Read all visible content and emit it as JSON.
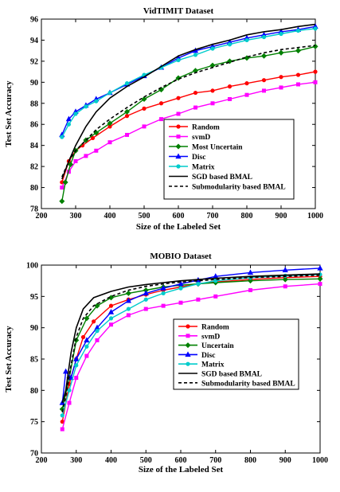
{
  "chart_data": [
    {
      "type": "line",
      "title": "VidTIMIT Dataset",
      "xlabel": "Size of the Labeled Set",
      "ylabel": "Test Set Accuracy",
      "xlim": [
        200,
        1000
      ],
      "ylim": [
        78,
        96
      ],
      "xticks": [
        200,
        300,
        400,
        500,
        600,
        700,
        800,
        900,
        1000
      ],
      "yticks": [
        78,
        80,
        82,
        84,
        86,
        88,
        90,
        92,
        94,
        96
      ],
      "grid": false,
      "legend_position": "bottom-right",
      "series": [
        {
          "name": "Random",
          "color": "#ff0000",
          "marker": "circle",
          "dash": "",
          "x": [
            260,
            280,
            300,
            320,
            350,
            400,
            450,
            500,
            550,
            600,
            650,
            700,
            750,
            800,
            850,
            900,
            950,
            1000
          ],
          "y": [
            80.5,
            82.5,
            83.5,
            84.0,
            84.7,
            85.8,
            86.8,
            87.5,
            88.0,
            88.5,
            89.0,
            89.2,
            89.6,
            89.9,
            90.2,
            90.5,
            90.7,
            91.0
          ]
        },
        {
          "name": "svmD",
          "color": "#ff00ff",
          "marker": "square",
          "dash": "",
          "x": [
            260,
            280,
            300,
            330,
            360,
            400,
            450,
            500,
            550,
            600,
            650,
            700,
            750,
            800,
            850,
            900,
            950,
            1000
          ],
          "y": [
            80.0,
            81.5,
            82.5,
            83.0,
            83.5,
            84.3,
            85.0,
            85.8,
            86.5,
            87.0,
            87.6,
            88.0,
            88.4,
            88.8,
            89.2,
            89.5,
            89.8,
            90.0
          ]
        },
        {
          "name": "Most Uncertain",
          "color": "#008000",
          "marker": "diamond",
          "dash": "",
          "x": [
            260,
            270,
            285,
            300,
            330,
            360,
            400,
            450,
            500,
            550,
            600,
            650,
            700,
            750,
            800,
            850,
            900,
            950,
            1000
          ],
          "y": [
            78.7,
            80.5,
            82.2,
            83.5,
            84.5,
            85.2,
            86.1,
            87.2,
            88.4,
            89.3,
            90.4,
            91.1,
            91.6,
            92.0,
            92.3,
            92.5,
            92.8,
            93.0,
            93.4
          ]
        },
        {
          "name": "Disc",
          "color": "#0000ff",
          "marker": "triangle",
          "dash": "",
          "x": [
            260,
            280,
            300,
            330,
            360,
            400,
            450,
            500,
            550,
            600,
            650,
            700,
            750,
            800,
            850,
            900,
            950,
            1000
          ],
          "y": [
            85.0,
            86.5,
            87.2,
            87.8,
            88.4,
            89.0,
            89.8,
            90.6,
            91.4,
            92.3,
            93.0,
            93.4,
            93.8,
            94.2,
            94.5,
            94.8,
            95.0,
            95.3
          ]
        },
        {
          "name": "Matrix",
          "color": "#00cccc",
          "marker": "circle",
          "dash": "",
          "x": [
            260,
            280,
            300,
            330,
            360,
            400,
            450,
            500,
            550,
            600,
            650,
            700,
            750,
            800,
            850,
            900,
            950,
            1000
          ],
          "y": [
            84.8,
            86.0,
            87.0,
            87.7,
            88.2,
            89.0,
            89.9,
            90.7,
            91.4,
            92.1,
            92.6,
            93.2,
            93.6,
            94.0,
            94.3,
            94.6,
            94.9,
            95.1
          ]
        },
        {
          "name": "SGD based BMAL",
          "color": "#000000",
          "marker": "none",
          "dash": "",
          "x": [
            260,
            280,
            300,
            330,
            360,
            400,
            450,
            500,
            550,
            600,
            650,
            700,
            750,
            800,
            850,
            900,
            950,
            1000
          ],
          "y": [
            80.8,
            82.5,
            84.0,
            85.8,
            87.2,
            88.5,
            89.6,
            90.5,
            91.5,
            92.5,
            93.1,
            93.6,
            94.0,
            94.5,
            94.8,
            95.0,
            95.3,
            95.5
          ]
        },
        {
          "name": "Submodularity based BMAL",
          "color": "#000000",
          "marker": "none",
          "dash": "4 3",
          "x": [
            260,
            280,
            300,
            330,
            360,
            400,
            450,
            500,
            550,
            600,
            650,
            700,
            750,
            800,
            850,
            900,
            950,
            1000
          ],
          "y": [
            81.0,
            82.5,
            83.5,
            84.5,
            85.5,
            86.5,
            87.6,
            88.6,
            89.5,
            90.3,
            90.9,
            91.4,
            91.9,
            92.4,
            92.8,
            93.1,
            93.3,
            93.5
          ]
        }
      ]
    },
    {
      "type": "line",
      "title": "MOBIO Dataset",
      "xlabel": "Size of the Labeled Set",
      "ylabel": "Test Set Accuracy",
      "xlim": [
        200,
        1000
      ],
      "ylim": [
        70,
        100
      ],
      "xticks": [
        200,
        300,
        400,
        500,
        600,
        700,
        800,
        900,
        1000
      ],
      "yticks": [
        70,
        75,
        80,
        85,
        90,
        95,
        100
      ],
      "grid": false,
      "legend_position": "bottom-right",
      "series": [
        {
          "name": "Random",
          "color": "#ff0000",
          "marker": "circle",
          "dash": "",
          "x": [
            260,
            280,
            300,
            320,
            350,
            400,
            450,
            500,
            550,
            600,
            650,
            700,
            800,
            900,
            1000
          ],
          "y": [
            75.0,
            81.0,
            85.0,
            88.5,
            91.0,
            93.5,
            94.5,
            95.3,
            96.0,
            96.5,
            97.0,
            97.3,
            97.7,
            98.0,
            98.2
          ]
        },
        {
          "name": "svmD",
          "color": "#ff00ff",
          "marker": "square",
          "dash": "",
          "x": [
            260,
            280,
            300,
            330,
            360,
            400,
            450,
            500,
            550,
            600,
            650,
            700,
            800,
            900,
            1000
          ],
          "y": [
            73.8,
            78.0,
            82.0,
            85.5,
            88.0,
            90.5,
            92.0,
            93.0,
            93.5,
            94.0,
            94.5,
            95.0,
            96.0,
            96.6,
            97.0
          ]
        },
        {
          "name": "Uncertain",
          "color": "#008000",
          "marker": "diamond",
          "dash": "",
          "x": [
            260,
            280,
            300,
            330,
            360,
            400,
            450,
            500,
            550,
            600,
            650,
            700,
            800,
            900,
            1000
          ],
          "y": [
            77.0,
            82.0,
            88.0,
            91.5,
            93.5,
            94.8,
            95.5,
            96.0,
            96.5,
            96.8,
            97.0,
            97.2,
            97.5,
            97.7,
            97.8
          ]
        },
        {
          "name": "Disc",
          "color": "#0000ff",
          "marker": "triangle",
          "dash": "",
          "x": [
            260,
            270,
            285,
            300,
            330,
            360,
            400,
            450,
            500,
            550,
            600,
            650,
            700,
            800,
            900,
            1000
          ],
          "y": [
            78.0,
            83.0,
            82.0,
            85.0,
            88.0,
            90.0,
            92.5,
            94.3,
            95.5,
            96.3,
            97.0,
            97.6,
            98.2,
            98.8,
            99.2,
            99.5
          ]
        },
        {
          "name": "Matrix",
          "color": "#00cccc",
          "marker": "circle",
          "dash": "",
          "x": [
            260,
            280,
            300,
            330,
            360,
            400,
            450,
            500,
            550,
            600,
            650,
            700,
            800,
            900,
            1000
          ],
          "y": [
            76.0,
            80.0,
            84.0,
            87.0,
            89.5,
            91.5,
            93.0,
            94.5,
            95.5,
            96.3,
            97.0,
            97.5,
            98.0,
            98.3,
            98.5
          ]
        },
        {
          "name": "SGD based BMAL",
          "color": "#000000",
          "marker": "none",
          "dash": "",
          "x": [
            260,
            270,
            285,
            300,
            320,
            350,
            400,
            450,
            500,
            550,
            600,
            650,
            700,
            800,
            900,
            1000
          ],
          "y": [
            78.0,
            80.0,
            86.0,
            90.0,
            93.0,
            94.8,
            95.8,
            96.5,
            96.9,
            97.2,
            97.5,
            97.7,
            97.9,
            98.2,
            98.4,
            98.6
          ]
        },
        {
          "name": "Submodularity based BMAL",
          "color": "#000000",
          "marker": "none",
          "dash": "4 3",
          "x": [
            260,
            270,
            285,
            300,
            320,
            350,
            400,
            450,
            500,
            550,
            600,
            650,
            700,
            800,
            900,
            1000
          ],
          "y": [
            76.5,
            79.0,
            84.0,
            88.5,
            91.5,
            93.5,
            95.0,
            96.0,
            96.6,
            97.0,
            97.3,
            97.5,
            97.7,
            98.0,
            98.2,
            98.4
          ]
        }
      ]
    }
  ]
}
